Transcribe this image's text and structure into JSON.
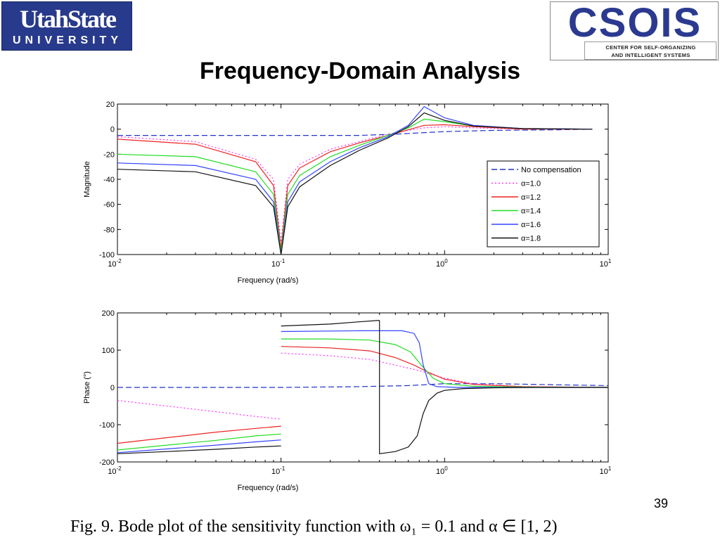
{
  "slide": {
    "title": "Frequency-Domain Analysis",
    "page_number": "39",
    "caption": "Fig. 9.   Bode plot of the sensitivity function with ω₁ = 0.1 and α ∈ [1, 2)"
  },
  "logos": {
    "usu_top": "UtahState",
    "usu_bottom": "UNIVERSITY",
    "csois_word": "CSOIS",
    "csois_line1": "CENTER FOR SELF-ORGANIZING",
    "csois_line2": "AND INTELLIGENT SYSTEMS",
    "usu_color": "#283a8c",
    "csois_color": "#2b3a90"
  },
  "chart_data": [
    {
      "type": "line",
      "panel": "magnitude",
      "title": "",
      "xlabel": "Frequency (rad/s)",
      "ylabel": "Magnitude",
      "xscale": "log",
      "xlim": [
        0.01,
        10
      ],
      "ylim": [
        -100,
        20
      ],
      "yticks": [
        20,
        0,
        -20,
        -40,
        -60,
        -80,
        -100
      ],
      "xtick_labels": [
        {
          "base": "10",
          "exp": "-2"
        },
        {
          "base": "10",
          "exp": "-1"
        },
        {
          "base": "10",
          "exp": "0"
        },
        {
          "base": "10",
          "exp": "1"
        }
      ],
      "grid": false,
      "legend_position": "right",
      "series": [
        {
          "name": "No compensation",
          "color": "#2233cc",
          "style": "dashed",
          "x": [
            0.01,
            0.1,
            0.3,
            0.5,
            0.7,
            1,
            2,
            5,
            8
          ],
          "y": [
            -5,
            -5,
            -5,
            -4,
            -3,
            -2,
            -1,
            -0.5,
            0
          ]
        },
        {
          "name": "α=1.0",
          "color": "#ff33ff",
          "style": "dotted",
          "x": [
            0.01,
            0.03,
            0.07,
            0.09,
            0.1,
            0.11,
            0.13,
            0.2,
            0.3,
            0.45,
            0.6,
            0.75,
            1.0,
            1.5,
            3,
            8
          ],
          "y": [
            -6,
            -10,
            -24,
            -40,
            -90,
            -40,
            -28,
            -16,
            -10,
            -4,
            -1,
            1,
            2,
            1,
            0,
            0
          ]
        },
        {
          "name": "α=1.2",
          "color": "#ee2222",
          "style": "solid",
          "x": [
            0.01,
            0.03,
            0.07,
            0.09,
            0.1,
            0.11,
            0.13,
            0.2,
            0.3,
            0.45,
            0.6,
            0.75,
            1.0,
            1.5,
            3,
            8
          ],
          "y": [
            -8,
            -12,
            -26,
            -45,
            -95,
            -45,
            -31,
            -18,
            -11,
            -5,
            -0.5,
            3,
            3.5,
            2,
            0,
            0
          ]
        },
        {
          "name": "α=1.4",
          "color": "#22dd22",
          "style": "solid",
          "x": [
            0.01,
            0.03,
            0.07,
            0.09,
            0.1,
            0.11,
            0.13,
            0.2,
            0.3,
            0.45,
            0.6,
            0.75,
            1.0,
            1.5,
            3,
            8
          ],
          "y": [
            -20,
            -22,
            -34,
            -52,
            -98,
            -52,
            -37,
            -22,
            -13,
            -5,
            1,
            8,
            6,
            2.5,
            0.5,
            0
          ]
        },
        {
          "name": "α=1.6",
          "color": "#3344ff",
          "style": "solid",
          "x": [
            0.01,
            0.03,
            0.07,
            0.09,
            0.1,
            0.11,
            0.13,
            0.2,
            0.3,
            0.45,
            0.6,
            0.75,
            1.0,
            1.5,
            3,
            8
          ],
          "y": [
            -27,
            -29,
            -40,
            -58,
            -100,
            -58,
            -42,
            -26,
            -15,
            -6,
            3,
            18,
            9,
            3,
            0.5,
            0
          ]
        },
        {
          "name": "α=1.8",
          "color": "#111111",
          "style": "solid",
          "x": [
            0.01,
            0.03,
            0.07,
            0.09,
            0.1,
            0.11,
            0.13,
            0.2,
            0.3,
            0.45,
            0.6,
            0.75,
            1.0,
            1.5,
            3,
            8
          ],
          "y": [
            -32,
            -34,
            -45,
            -62,
            -100,
            -62,
            -46,
            -29,
            -17,
            -7,
            2,
            13,
            7,
            2.5,
            0.5,
            0
          ]
        }
      ]
    },
    {
      "type": "line",
      "panel": "phase",
      "title": "",
      "xlabel": "Frequency (rad/s)",
      "ylabel": "Phase (°)",
      "xscale": "log",
      "xlim": [
        0.01,
        10
      ],
      "ylim": [
        -200,
        200
      ],
      "yticks": [
        200,
        100,
        0,
        -100,
        -200
      ],
      "xtick_labels": [
        {
          "base": "10",
          "exp": "-2"
        },
        {
          "base": "10",
          "exp": "-1"
        },
        {
          "base": "10",
          "exp": "0"
        },
        {
          "base": "10",
          "exp": "1"
        }
      ],
      "grid": false,
      "series": [
        {
          "name": "No compensation",
          "color": "#2233cc",
          "style": "dashed",
          "x": [
            0.01,
            0.1,
            0.3,
            0.6,
            1,
            2,
            5,
            10
          ],
          "y": [
            0,
            0,
            2,
            5,
            10,
            10,
            7,
            5
          ]
        },
        {
          "name": "α=1.0",
          "color": "#ff33ff",
          "style": "dotted",
          "segments": [
            {
              "x": [
                0.01,
                0.02,
                0.04,
                0.07,
                0.1
              ],
              "y": [
                -35,
                -50,
                -65,
                -78,
                -85
              ]
            },
            {
              "x": [
                0.1,
                0.2,
                0.35,
                0.5,
                0.7,
                1,
                1.5,
                3,
                10
              ],
              "y": [
                92,
                85,
                75,
                60,
                45,
                25,
                10,
                2,
                0
              ]
            }
          ]
        },
        {
          "name": "α=1.2",
          "color": "#ee2222",
          "style": "solid",
          "segments": [
            {
              "x": [
                0.01,
                0.02,
                0.04,
                0.07,
                0.1
              ],
              "y": [
                -150,
                -135,
                -120,
                -110,
                -104
              ]
            },
            {
              "x": [
                0.1,
                0.2,
                0.35,
                0.5,
                0.65,
                0.8,
                1,
                1.5,
                3,
                10
              ],
              "y": [
                110,
                106,
                98,
                80,
                60,
                40,
                22,
                8,
                2,
                0
              ]
            }
          ]
        },
        {
          "name": "α=1.4",
          "color": "#22dd22",
          "style": "solid",
          "segments": [
            {
              "x": [
                0.01,
                0.02,
                0.04,
                0.07,
                0.1
              ],
              "y": [
                -168,
                -155,
                -142,
                -130,
                -125
              ]
            },
            {
              "x": [
                0.1,
                0.2,
                0.35,
                0.5,
                0.62,
                0.72,
                0.85,
                1,
                1.5,
                3,
                10
              ],
              "y": [
                130,
                130,
                127,
                115,
                95,
                60,
                25,
                10,
                3,
                1,
                0
              ]
            }
          ]
        },
        {
          "name": "α=1.6",
          "color": "#3344ff",
          "style": "solid",
          "segments": [
            {
              "x": [
                0.01,
                0.02,
                0.04,
                0.07,
                0.1
              ],
              "y": [
                -175,
                -165,
                -155,
                -146,
                -141
              ]
            },
            {
              "x": [
                0.1,
                0.3,
                0.55,
                0.65,
                0.7,
                0.74,
                0.8,
                0.9,
                1.2,
                2,
                10
              ],
              "y": [
                150,
                152,
                152,
                145,
                120,
                60,
                10,
                2,
                0,
                0,
                0
              ]
            }
          ]
        },
        {
          "name": "α=1.8",
          "color": "#111111",
          "style": "solid",
          "segments": [
            {
              "x": [
                0.01,
                0.02,
                0.04,
                0.07,
                0.1
              ],
              "y": [
                -178,
                -172,
                -166,
                -160,
                -157
              ]
            },
            {
              "x": [
                0.1,
                0.2,
                0.3,
                0.4
              ],
              "y": [
                165,
                170,
                176,
                180
              ]
            },
            {
              "x": [
                0.4,
                0.4,
                0.5,
                0.6,
                0.68,
                0.74,
                0.8,
                0.9,
                1.0,
                1.3,
                2,
                4,
                10
              ],
              "y": [
                180,
                -178,
                -172,
                -160,
                -130,
                -70,
                -35,
                -15,
                -8,
                -3,
                -1,
                0,
                0
              ]
            }
          ]
        }
      ]
    }
  ]
}
